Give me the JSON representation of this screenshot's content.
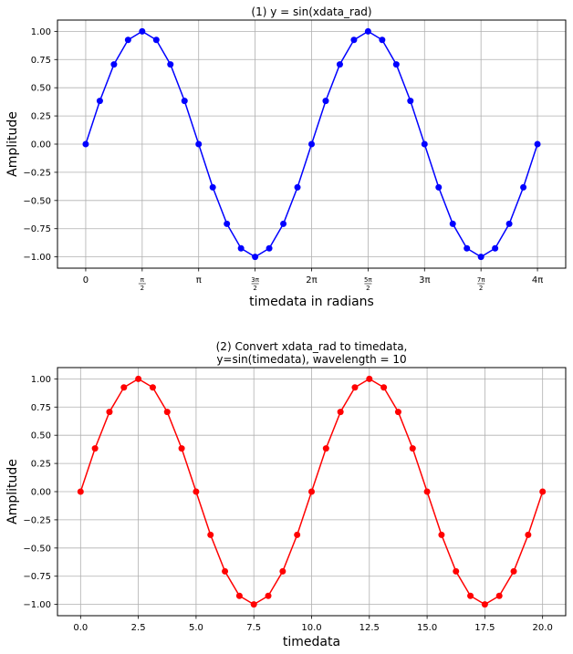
{
  "chart_data": [
    {
      "type": "line",
      "title": "(1) y = sin(xdata_rad)",
      "xlabel": "timedata in radians",
      "ylabel": "Amplitude",
      "xlim": [
        -0.7854,
        13.3518
      ],
      "ylim": [
        -1.1,
        1.1
      ],
      "grid": true,
      "color": "#0000ff",
      "marker": "circle",
      "x_ticks": [
        {
          "v": 0,
          "n": "0",
          "d": ""
        },
        {
          "v": 1.5708,
          "n": "π",
          "d": "2"
        },
        {
          "v": 3.1416,
          "n": "π",
          "d": ""
        },
        {
          "v": 4.7124,
          "n": "3π",
          "d": "2"
        },
        {
          "v": 6.2832,
          "n": "2π",
          "d": ""
        },
        {
          "v": 7.854,
          "n": "5π",
          "d": "2"
        },
        {
          "v": 9.4248,
          "n": "3π",
          "d": ""
        },
        {
          "v": 10.9956,
          "n": "7π",
          "d": "2"
        },
        {
          "v": 12.5664,
          "n": "4π",
          "d": ""
        }
      ],
      "y_ticks": [
        "1.00",
        "0.75",
        "0.50",
        "0.25",
        "0.00",
        "−0.25",
        "−0.50",
        "−0.75",
        "−1.00"
      ],
      "y_tick_values": [
        1,
        0.75,
        0.5,
        0.25,
        0,
        -0.25,
        -0.5,
        -0.75,
        -1
      ],
      "series": [
        {
          "x": [
            0,
            0.3927,
            0.7854,
            1.1781,
            1.5708,
            1.9635,
            2.3562,
            2.7489,
            3.1416,
            3.5343,
            3.927,
            4.3197,
            4.7124,
            5.1051,
            5.4978,
            5.8905,
            6.2832,
            6.6759,
            7.0686,
            7.4613,
            7.854,
            8.2467,
            8.6394,
            9.0321,
            9.4248,
            9.8175,
            10.2102,
            10.6029,
            10.9956,
            11.3883,
            11.781,
            12.1737,
            12.5664
          ],
          "y": [
            0,
            0.383,
            0.707,
            0.924,
            1,
            0.924,
            0.707,
            0.383,
            0,
            -0.383,
            -0.707,
            -0.924,
            -1,
            -0.924,
            -0.707,
            -0.383,
            0,
            0.383,
            0.707,
            0.924,
            1,
            0.924,
            0.707,
            0.383,
            0,
            -0.383,
            -0.707,
            -0.924,
            -1,
            -0.924,
            -0.707,
            -0.383,
            0
          ]
        }
      ]
    },
    {
      "type": "line",
      "title": "(2) Convert xdata_rad to timedata,",
      "subtitle": "y=sin(timedata), wavelength = 10",
      "xlabel": "timedata",
      "ylabel": "Amplitude",
      "xlim": [
        -1.0,
        21.0
      ],
      "ylim": [
        -1.1,
        1.1
      ],
      "grid": true,
      "color": "#ff0000",
      "marker": "circle",
      "x_ticks": [
        {
          "v": 0,
          "n": "0.0",
          "d": ""
        },
        {
          "v": 2.5,
          "n": "2.5",
          "d": ""
        },
        {
          "v": 5,
          "n": "5.0",
          "d": ""
        },
        {
          "v": 7.5,
          "n": "7.5",
          "d": ""
        },
        {
          "v": 10,
          "n": "10.0",
          "d": ""
        },
        {
          "v": 12.5,
          "n": "12.5",
          "d": ""
        },
        {
          "v": 15,
          "n": "15.0",
          "d": ""
        },
        {
          "v": 17.5,
          "n": "17.5",
          "d": ""
        },
        {
          "v": 20,
          "n": "20.0",
          "d": ""
        }
      ],
      "y_ticks": [
        "1.00",
        "0.75",
        "0.50",
        "0.25",
        "0.00",
        "−0.25",
        "−0.50",
        "−0.75",
        "−1.00"
      ],
      "y_tick_values": [
        1,
        0.75,
        0.5,
        0.25,
        0,
        -0.25,
        -0.5,
        -0.75,
        -1
      ],
      "series": [
        {
          "x": [
            0,
            0.625,
            1.25,
            1.875,
            2.5,
            3.125,
            3.75,
            4.375,
            5,
            5.625,
            6.25,
            6.875,
            7.5,
            8.125,
            8.75,
            9.375,
            10,
            10.625,
            11.25,
            11.875,
            12.5,
            13.125,
            13.75,
            14.375,
            15,
            15.625,
            16.25,
            16.875,
            17.5,
            18.125,
            18.75,
            19.375,
            20
          ],
          "y": [
            0,
            0.383,
            0.707,
            0.924,
            1,
            0.924,
            0.707,
            0.383,
            0,
            -0.383,
            -0.707,
            -0.924,
            -1,
            -0.924,
            -0.707,
            -0.383,
            0,
            0.383,
            0.707,
            0.924,
            1,
            0.924,
            0.707,
            0.383,
            0,
            -0.383,
            -0.707,
            -0.924,
            -1,
            -0.924,
            -0.707,
            -0.383,
            0
          ]
        }
      ]
    }
  ]
}
